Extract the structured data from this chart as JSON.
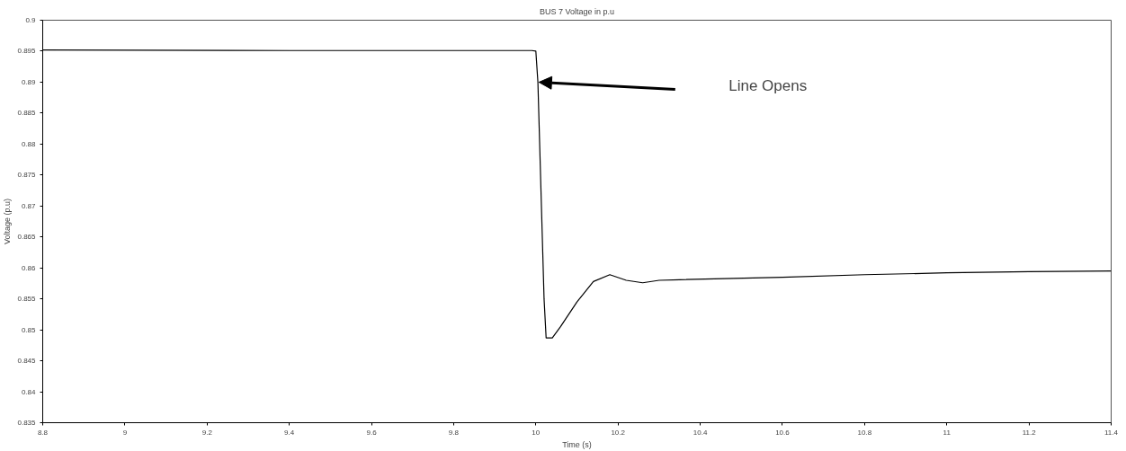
{
  "chart_data": {
    "type": "line",
    "title": "BUS 7 Voltage in p.u",
    "xlabel": "Time (s)",
    "ylabel": "Voltage (p.u)",
    "x": [
      8.8,
      9.4,
      9.99,
      10.0,
      10.005,
      10.02,
      10.025,
      10.04,
      10.06,
      10.1,
      10.14,
      10.18,
      10.22,
      10.26,
      10.3,
      10.35,
      10.6,
      10.8,
      11.0,
      11.2,
      11.4
    ],
    "series": [
      {
        "color": "#000000",
        "values": [
          0.8952,
          0.8951,
          0.8951,
          0.895,
          0.89,
          0.855,
          0.8487,
          0.8487,
          0.8505,
          0.8545,
          0.8578,
          0.8589,
          0.858,
          0.8576,
          0.858,
          0.8581,
          0.8585,
          0.8589,
          0.8592,
          0.8594,
          0.8595
        ]
      }
    ],
    "xlim": [
      8.8,
      11.4
    ],
    "xticks": [
      8.8,
      9,
      9.2,
      9.4,
      9.6,
      9.8,
      10,
      10.2,
      10.4,
      10.6,
      10.8,
      11,
      11.2,
      11.4
    ],
    "ylim": [
      0.835,
      0.9
    ],
    "yticks": [
      0.835,
      0.84,
      0.845,
      0.85,
      0.855,
      0.86,
      0.865,
      0.87,
      0.875,
      0.88,
      0.885,
      0.89,
      0.895,
      0.9
    ],
    "grid": false,
    "marker": "none",
    "line_style": "solid",
    "annotations": [
      "Line Opens"
    ]
  }
}
